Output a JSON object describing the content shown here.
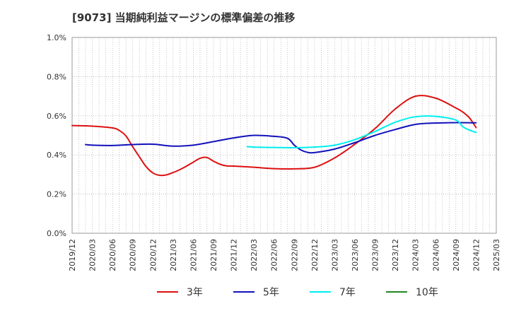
{
  "chart_data": {
    "type": "line",
    "title": "[9073]  当期純利益マージンの標準偏差の推移",
    "xlabel": "",
    "ylabel": "",
    "x_ticks": [
      "2019/12",
      "2020/03",
      "2020/06",
      "2020/09",
      "2020/12",
      "2021/03",
      "2021/06",
      "2021/09",
      "2021/12",
      "2022/03",
      "2022/06",
      "2022/09",
      "2022/12",
      "2023/03",
      "2023/06",
      "2023/09",
      "2023/12",
      "2024/03",
      "2024/06",
      "2024/09",
      "2024/12",
      "2025/03"
    ],
    "y_ticks": [
      "0.0%",
      "0.2%",
      "0.4%",
      "0.6%",
      "0.8%",
      "1.0%"
    ],
    "ylim": [
      0,
      1.0
    ],
    "grid": "dotted",
    "legend_position": "bottom",
    "series": [
      {
        "name": "3年",
        "color": "#dd1111",
        "x": [
          "2019/12",
          "2020/03",
          "2020/06",
          "2020/07",
          "2020/08",
          "2020/09",
          "2020/10",
          "2020/11",
          "2020/12",
          "2021/01",
          "2021/02",
          "2021/03",
          "2021/04",
          "2021/05",
          "2021/06",
          "2021/07",
          "2021/08",
          "2021/09",
          "2021/10",
          "2021/11",
          "2021/12",
          "2022/03",
          "2022/06",
          "2022/09",
          "2022/12",
          "2023/03",
          "2023/06",
          "2023/09",
          "2023/12",
          "2024/03",
          "2024/06",
          "2024/09",
          "2024/10",
          "2024/11",
          "2024/12"
        ],
        "y": [
          0.55,
          0.547,
          0.538,
          0.525,
          0.497,
          0.442,
          0.39,
          0.34,
          0.308,
          0.296,
          0.298,
          0.31,
          0.325,
          0.343,
          0.363,
          0.383,
          0.387,
          0.368,
          0.352,
          0.344,
          0.343,
          0.337,
          0.33,
          0.329,
          0.337,
          0.385,
          0.455,
          0.535,
          0.635,
          0.7,
          0.69,
          0.64,
          0.62,
          0.59,
          0.54
        ]
      },
      {
        "name": "5年",
        "color": "#1111bb",
        "x": [
          "2020/02",
          "2020/03",
          "2020/06",
          "2020/09",
          "2020/12",
          "2021/03",
          "2021/06",
          "2021/09",
          "2021/12",
          "2022/03",
          "2022/06",
          "2022/08",
          "2022/09",
          "2022/10",
          "2022/11",
          "2022/12",
          "2023/03",
          "2023/06",
          "2023/09",
          "2023/12",
          "2024/03",
          "2024/06",
          "2024/09",
          "2024/12"
        ],
        "y": [
          0.453,
          0.45,
          0.448,
          0.453,
          0.455,
          0.445,
          0.45,
          0.468,
          0.487,
          0.5,
          0.495,
          0.485,
          0.45,
          0.425,
          0.413,
          0.412,
          0.43,
          0.463,
          0.5,
          0.53,
          0.556,
          0.563,
          0.565,
          0.564
        ]
      },
      {
        "name": "7年",
        "color": "#00eeee",
        "x": [
          "2022/02",
          "2022/03",
          "2022/06",
          "2022/09",
          "2022/12",
          "2023/03",
          "2023/06",
          "2023/09",
          "2023/12",
          "2024/03",
          "2024/06",
          "2024/09",
          "2024/10",
          "2024/11",
          "2024/12"
        ],
        "y": [
          0.443,
          0.44,
          0.438,
          0.437,
          0.44,
          0.45,
          0.478,
          0.52,
          0.567,
          0.595,
          0.597,
          0.578,
          0.545,
          0.527,
          0.515
        ]
      },
      {
        "name": "10年",
        "color": "#228822",
        "x": [],
        "y": []
      }
    ]
  }
}
